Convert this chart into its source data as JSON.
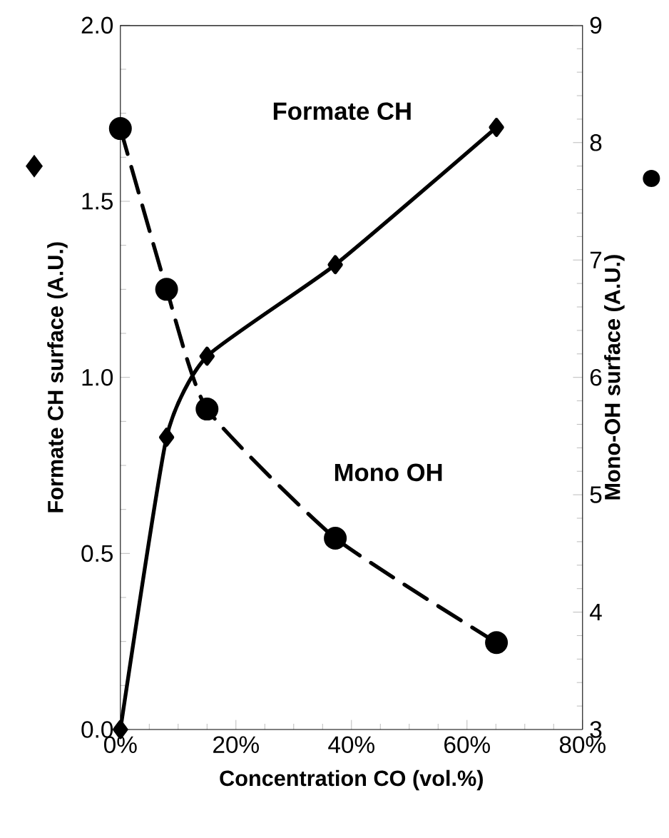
{
  "chart_data": {
    "type": "line",
    "xlabel": "Concentration CO (vol.%)",
    "ylabel": "Formate CH surface (A.U.)",
    "y2label": "Mono-OH surface (A.U.)",
    "xlim": [
      0,
      80
    ],
    "xticks": [
      {
        "value": 0,
        "label": "0%"
      },
      {
        "value": 20,
        "label": "20%"
      },
      {
        "value": 40,
        "label": "40%"
      },
      {
        "value": 60,
        "label": "60%"
      },
      {
        "value": 80,
        "label": "80%"
      }
    ],
    "ylim": [
      0,
      2
    ],
    "yticks": [
      {
        "value": 0,
        "label": "0.0"
      },
      {
        "value": 0.5,
        "label": "0.5"
      },
      {
        "value": 1,
        "label": "1.0"
      },
      {
        "value": 1.5,
        "label": "1.5"
      },
      {
        "value": 2,
        "label": "2.0"
      }
    ],
    "y2lim": [
      3,
      9
    ],
    "y2ticks": [
      3,
      4,
      5,
      6,
      7,
      8,
      9
    ],
    "grid": false,
    "series": [
      {
        "name": "Formate CH",
        "color": "#000000",
        "marker": "diamond",
        "line_style": "solid",
        "x": [
          0,
          8,
          15,
          37.2,
          65.1
        ],
        "values": [
          0,
          0.83,
          1.06,
          1.32,
          1.71
        ]
      },
      {
        "name": "Mono OH",
        "color": "#000000",
        "marker": "circle",
        "line_style": "dashed",
        "axis": "y2",
        "x": [
          0,
          8,
          15,
          37.2,
          65.1
        ],
        "values": [
          8.12,
          6.75,
          5.73,
          4.63,
          3.74
        ]
      }
    ]
  }
}
